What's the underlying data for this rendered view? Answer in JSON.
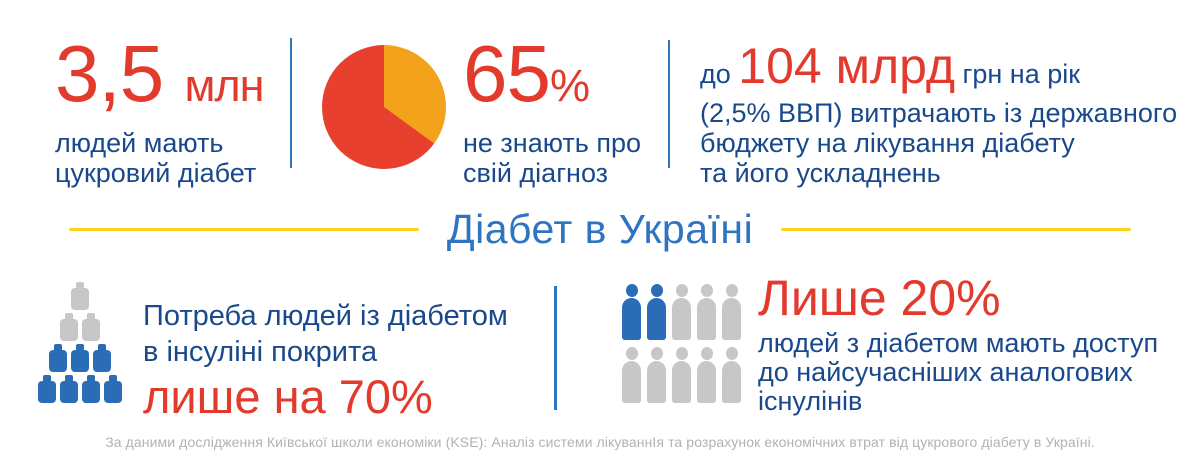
{
  "colors": {
    "red": "#e23a2d",
    "dark_blue": "#19498c",
    "title_blue": "#2e74c0",
    "divider_blue": "#2e74c0",
    "yellow": "#ffd21e",
    "icon_blue": "#2a6db6",
    "icon_gray": "#c7c7c7",
    "footer_gray": "#b2b2b6",
    "pie_red": "#e8402e",
    "pie_orange": "#f3a21c"
  },
  "stats": {
    "diabetics": {
      "value": "3,5",
      "unit": "млн",
      "caption_lines": [
        "людей мають",
        "цукровий діабет"
      ]
    },
    "undiagnosed": {
      "value": "65",
      "unit": "%",
      "caption_lines": [
        "не знають про",
        "свій діагноз"
      ]
    },
    "budget": {
      "prefix": "до",
      "value": "104 млрд",
      "suffix": "грн на рік",
      "lines": [
        "(2,5% ВВП) витрачають із державного",
        "бюджету на лікування діабету",
        "та його ускладнень"
      ]
    }
  },
  "title": "Діабет в Україні",
  "insulin": {
    "lines": [
      "Потреба людей із діабетом",
      "в інсуліні покрита"
    ],
    "highlight": "лише на 70%",
    "icon": {
      "rows": [
        {
          "count": 1,
          "variant": "gray"
        },
        {
          "count": 2,
          "variant": "gray"
        },
        {
          "count": 3,
          "variant": "blue"
        },
        {
          "count": 4,
          "variant": "blue"
        }
      ]
    }
  },
  "access": {
    "highlight": "Лише 20%",
    "lines": [
      "людей з діабетом мають доступ",
      "до найсучасніших аналогових",
      "існулінів"
    ],
    "icon": {
      "rows": [
        [
          "blue",
          "blue",
          "gray",
          "gray",
          "gray"
        ],
        [
          "gray",
          "gray",
          "gray",
          "gray",
          "gray"
        ]
      ]
    }
  },
  "footer": "За даними дослідження Київської школи економіки (KSE): Аналіз системи лікуваннІя та розрахунок економічних втрат від цукрового діабету в Україні.",
  "chart_data": [
    {
      "type": "pie",
      "title": "65% не знають про свій діагноз",
      "labels": [
        "не знають про свій діагноз",
        "знають про свій діагноз"
      ],
      "values": [
        65,
        35
      ],
      "colors": [
        "#e8402e",
        "#f3a21c"
      ],
      "start_angle_deg": 0,
      "direction": "clockwise",
      "annotation": "65%",
      "legend": "none"
    },
    {
      "type": "pictograph",
      "icon": "insulin-vial",
      "total_icons": 10,
      "highlighted_icons": 7,
      "percent_highlighted": 70,
      "rows": [
        1,
        2,
        3,
        4
      ],
      "note": "Потреба людей із діабетом в інсуліні покрита лише на 70%"
    },
    {
      "type": "pictograph",
      "icon": "person",
      "total_icons": 10,
      "highlighted_icons": 2,
      "percent_highlighted": 20,
      "rows": [
        5,
        5
      ],
      "note": "Лише 20% людей з діабетом мають доступ до найсучасніших аналогових існулінів"
    }
  ]
}
